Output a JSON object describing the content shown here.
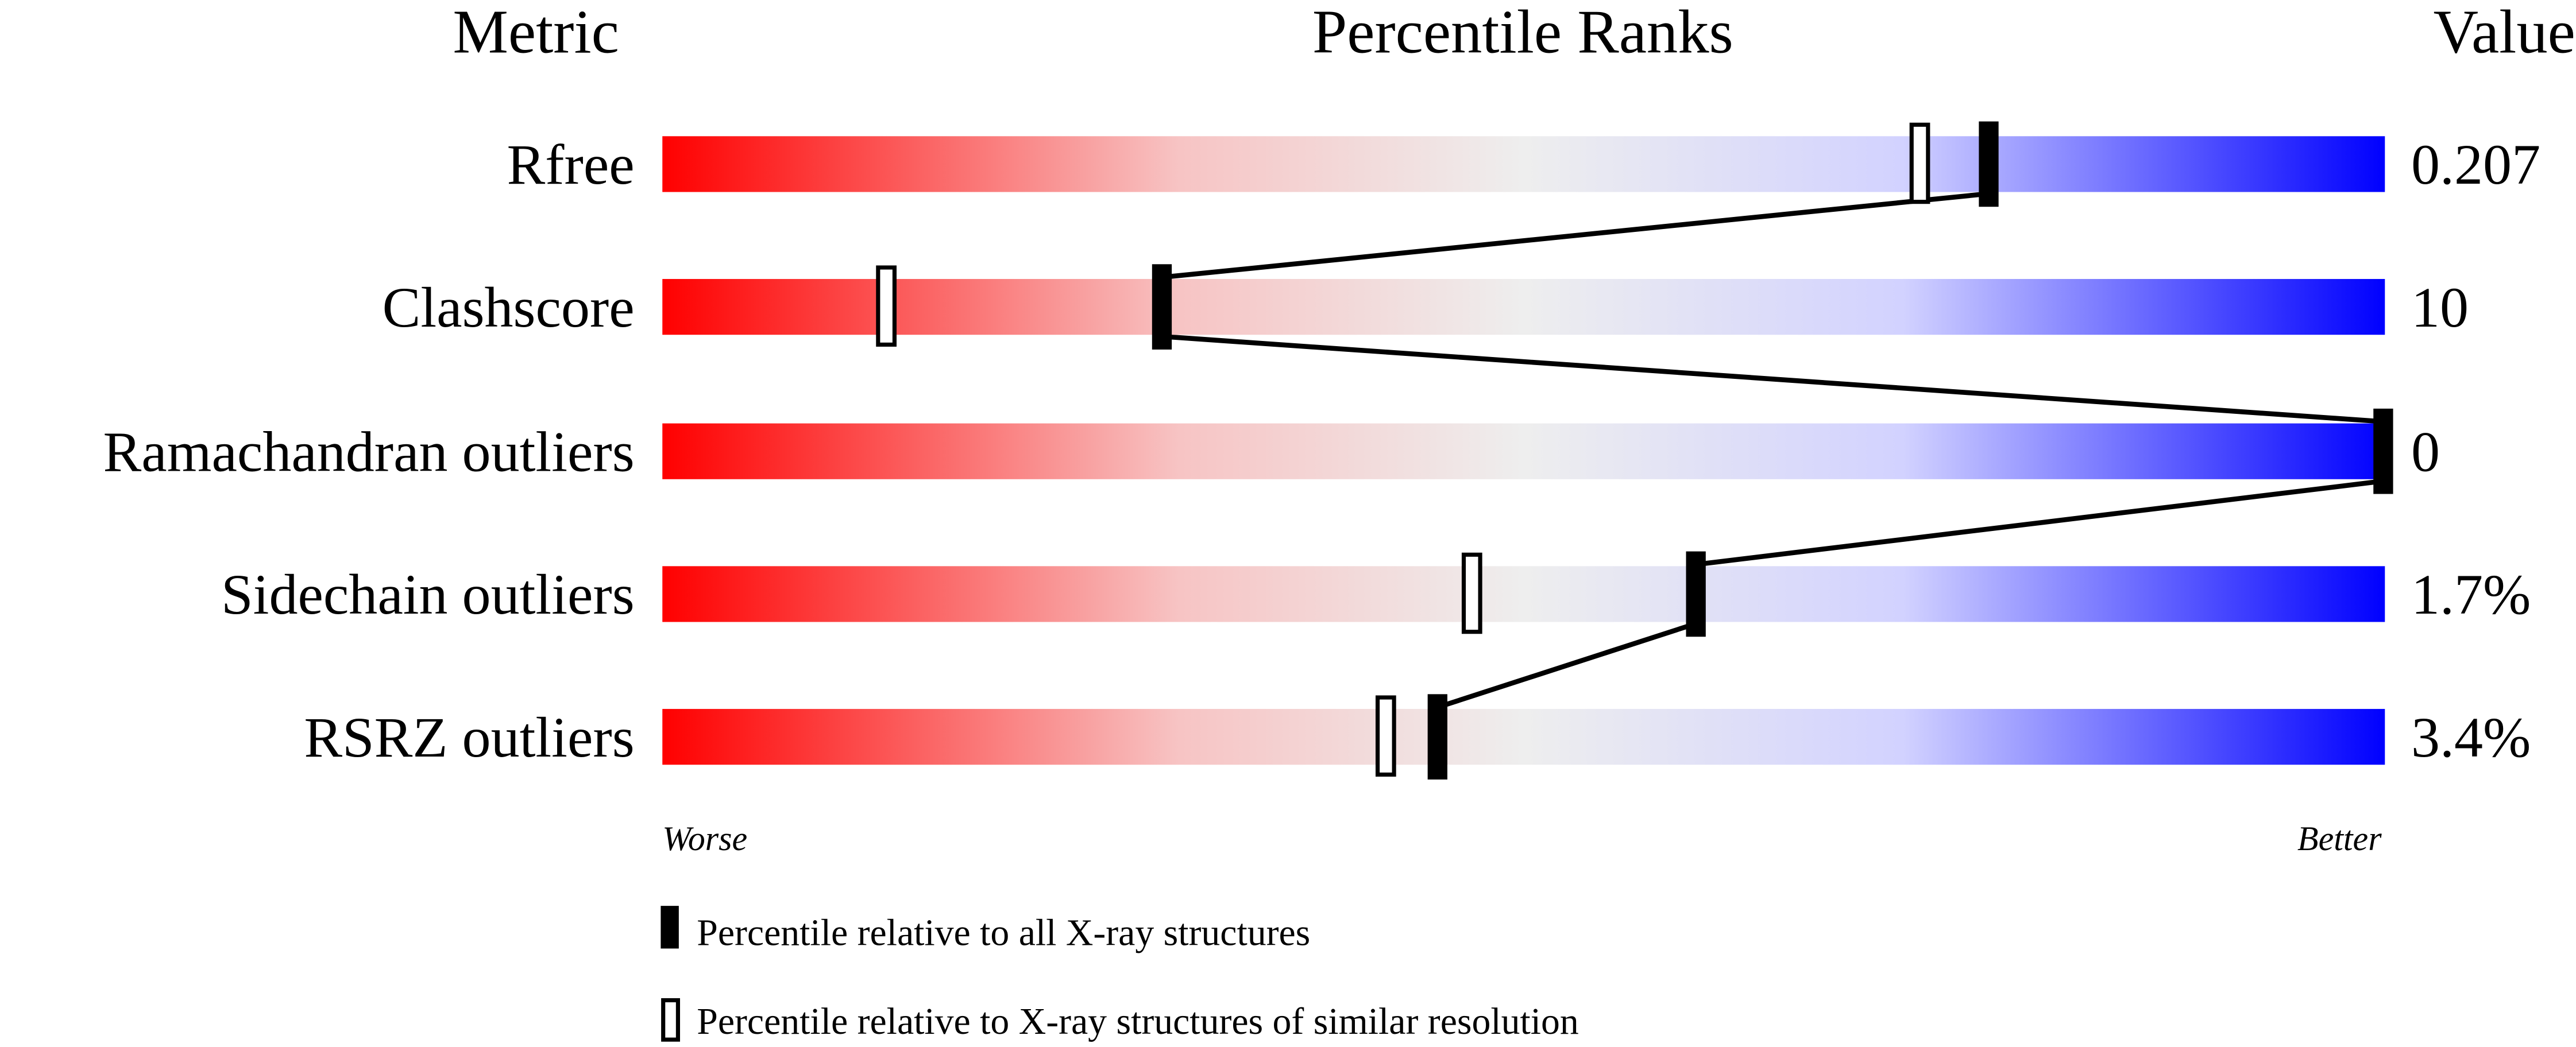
{
  "chart_data": {
    "type": "percentile-ranks",
    "headers": {
      "metric": "Metric",
      "ranks": "Percentile Ranks",
      "value": "Value"
    },
    "xlim": [
      0,
      100
    ],
    "axis_labels": {
      "left": "Worse",
      "right": "Better"
    },
    "gradient_colors": [
      "#ff0000",
      "#f7c4c4",
      "#eeeeee",
      "#d2d2ff",
      "#0000ff"
    ],
    "metrics": [
      {
        "name": "Rfree",
        "value": "0.207",
        "percentile_all": 77,
        "percentile_similar": 73
      },
      {
        "name": "Clashscore",
        "value": "10",
        "percentile_all": 29,
        "percentile_similar": 13
      },
      {
        "name": "Ramachandran outliers",
        "value": "0",
        "percentile_all": 100,
        "percentile_similar": 100
      },
      {
        "name": "Sidechain outliers",
        "value": "1.7%",
        "percentile_all": 60,
        "percentile_similar": 47
      },
      {
        "name": "RSRZ outliers",
        "value": "3.4%",
        "percentile_all": 45,
        "percentile_similar": 42
      }
    ],
    "legend": [
      {
        "marker": "filled",
        "label": "Percentile relative to all X-ray structures"
      },
      {
        "marker": "hollow",
        "label": "Percentile relative to X-ray structures of similar resolution"
      }
    ]
  }
}
